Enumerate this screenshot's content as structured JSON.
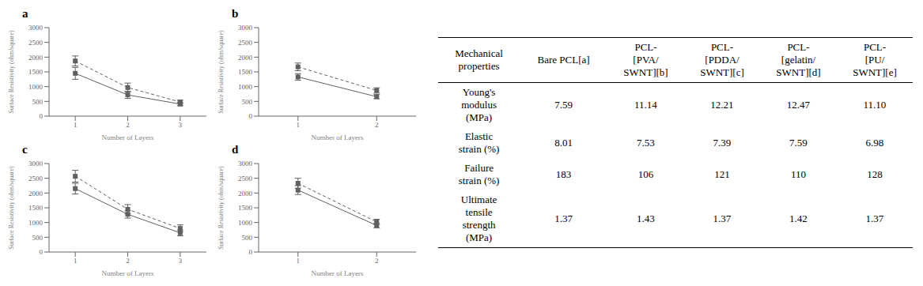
{
  "chart_data": [
    {
      "type": "line",
      "title": "a",
      "xlabel": "Number of Layers",
      "ylabel": "Surface Resistivity (ohm/square)",
      "x": [
        1,
        2,
        3
      ],
      "xlim": [
        0.5,
        3.5
      ],
      "xticks": [
        1,
        2,
        3
      ],
      "ylim": [
        0,
        3000
      ],
      "yticks": [
        0,
        500,
        1000,
        1500,
        2000,
        2500,
        3000
      ],
      "grid": false,
      "series": [
        {
          "color": "#606060",
          "marker": "square",
          "line_style": "dashed",
          "values": [
            1870,
            970,
            480
          ],
          "errors": [
            170,
            150,
            60
          ]
        },
        {
          "color": "#606060",
          "marker": "square",
          "line_style": "solid",
          "values": [
            1450,
            720,
            410
          ],
          "errors": [
            200,
            120,
            60
          ]
        }
      ]
    },
    {
      "type": "line",
      "title": "b",
      "xlabel": "Number of Layers",
      "ylabel": "Surface Resistivity (ohm/square)",
      "x": [
        1,
        2
      ],
      "xlim": [
        0.5,
        2.5
      ],
      "xticks": [
        1,
        2
      ],
      "ylim": [
        0,
        3000
      ],
      "yticks": [
        0,
        500,
        1000,
        1500,
        2000,
        2500,
        3000
      ],
      "grid": false,
      "series": [
        {
          "color": "#606060",
          "marker": "square",
          "line_style": "dashed",
          "values": [
            1670,
            870
          ],
          "errors": [
            130,
            90
          ]
        },
        {
          "color": "#606060",
          "marker": "square",
          "line_style": "solid",
          "values": [
            1330,
            660
          ],
          "errors": [
            110,
            70
          ]
        }
      ]
    },
    {
      "type": "line",
      "title": "c",
      "xlabel": "Number of Layers",
      "ylabel": "Surface Resistivity (ohm/square)",
      "x": [
        1,
        2,
        3
      ],
      "xlim": [
        0.5,
        3.5
      ],
      "xticks": [
        1,
        2,
        3
      ],
      "ylim": [
        0,
        3000
      ],
      "yticks": [
        0,
        500,
        1000,
        1500,
        2000,
        2500,
        3000
      ],
      "grid": false,
      "series": [
        {
          "color": "#606060",
          "marker": "square",
          "line_style": "dashed",
          "values": [
            2570,
            1450,
            800
          ],
          "errors": [
            200,
            160,
            120
          ]
        },
        {
          "color": "#606060",
          "marker": "square",
          "line_style": "solid",
          "values": [
            2150,
            1280,
            650
          ],
          "errors": [
            180,
            130,
            100
          ]
        }
      ]
    },
    {
      "type": "line",
      "title": "d",
      "xlabel": "Number of Layers",
      "ylabel": "Surface Resistivity (ohm/square)",
      "x": [
        1,
        2
      ],
      "xlim": [
        0.5,
        2.5
      ],
      "xticks": [
        1,
        2
      ],
      "ylim": [
        0,
        3000
      ],
      "yticks": [
        0,
        500,
        1000,
        1500,
        2000,
        2500,
        3000
      ],
      "grid": false,
      "series": [
        {
          "color": "#606060",
          "marker": "square",
          "line_style": "dashed",
          "values": [
            2330,
            1020
          ],
          "errors": [
            170,
            90
          ]
        },
        {
          "color": "#606060",
          "marker": "square",
          "line_style": "solid",
          "values": [
            2100,
            900
          ],
          "errors": [
            150,
            80
          ]
        }
      ]
    },
    {
      "type": "table",
      "columns": [
        "Mechanical\nproperties",
        "Bare PCL[a]",
        "PCL-\n[PVA/\nSWNT][b]",
        "PCL-\n[PDDA/\nSWNT][c]",
        "PCL-\n[gelatin/\nSWNT][d]",
        "PCL-\n[PU/\nSWNT][e]"
      ],
      "rows": [
        [
          "Young's\nmodulus\n(MPa)",
          "7.59",
          "11.14",
          "12.21",
          "12.47",
          "11.10"
        ],
        [
          "Elastic\nstrain (%)",
          "8.01",
          "7.53",
          "7.39",
          "7.59",
          "6.98"
        ],
        [
          "Failure\nstrain (%)",
          "183",
          "106",
          "121",
          "110",
          "128"
        ],
        [
          "Ultimate\ntensile\nstrength\n(MPa)",
          "1.37",
          "1.43",
          "1.37",
          "1.42",
          "1.37"
        ]
      ]
    }
  ]
}
